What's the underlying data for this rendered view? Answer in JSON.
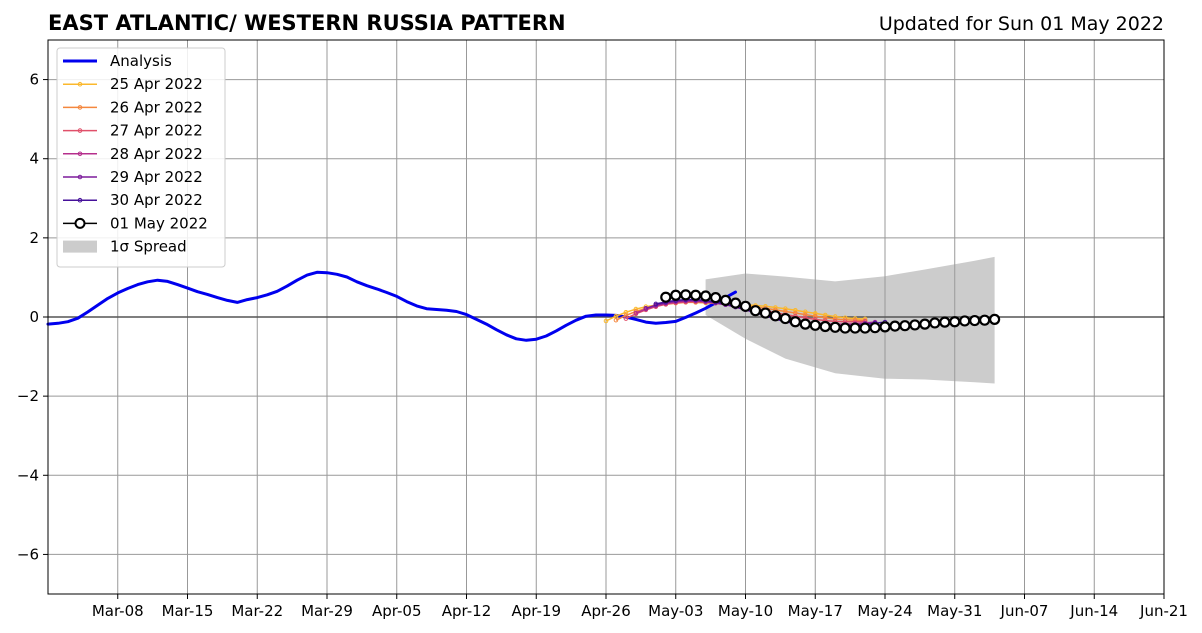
{
  "chart_data": {
    "type": "line",
    "title": "EAST ATLANTIC/ WESTERN RUSSIA PATTERN",
    "subtitle": "Updated for Sun 01 May 2022",
    "xlabel": "",
    "ylabel": "",
    "x_range": [
      "2022-03-01",
      "2022-06-21"
    ],
    "ylim": [
      -7,
      7
    ],
    "yticks": [
      -6,
      -4,
      -2,
      0,
      2,
      4,
      6
    ],
    "ytick_labels": [
      "−6",
      "−4",
      "−2",
      "0",
      "2",
      "4",
      "6"
    ],
    "xticks": [
      "2022-03-08",
      "2022-03-15",
      "2022-03-22",
      "2022-03-29",
      "2022-04-05",
      "2022-04-12",
      "2022-04-19",
      "2022-04-26",
      "2022-05-03",
      "2022-05-10",
      "2022-05-17",
      "2022-05-24",
      "2022-05-31",
      "2022-06-07",
      "2022-06-14",
      "2022-06-21"
    ],
    "xtick_labels": [
      "Mar-08",
      "Mar-15",
      "Mar-22",
      "Mar-29",
      "Apr-05",
      "Apr-12",
      "Apr-19",
      "Apr-26",
      "May-03",
      "May-10",
      "May-17",
      "May-24",
      "May-31",
      "Jun-07",
      "Jun-14",
      "Jun-21"
    ],
    "grid": true,
    "legend_position": "top-left",
    "legend": [
      {
        "label": "Analysis",
        "kind": "analysis"
      },
      {
        "label": "25 Apr 2022",
        "kind": "forecast",
        "color": "#fbb82c"
      },
      {
        "label": "26 Apr 2022",
        "kind": "forecast",
        "color": "#f4873e"
      },
      {
        "label": "27 Apr 2022",
        "kind": "forecast",
        "color": "#e0506a"
      },
      {
        "label": "28 Apr 2022",
        "kind": "forecast",
        "color": "#b52f8c"
      },
      {
        "label": "29 Apr 2022",
        "kind": "forecast",
        "color": "#7d1c9c"
      },
      {
        "label": "30 Apr 2022",
        "kind": "forecast",
        "color": "#45109a"
      },
      {
        "label": "01 May 2022",
        "kind": "latest"
      },
      {
        "label": "1σ Spread",
        "kind": "spread"
      }
    ],
    "colors": {
      "analysis": "#0000ee",
      "latest": "#000000",
      "spread": "#cccccc",
      "grid": "#999999",
      "zero": "#555555"
    },
    "analysis": {
      "name": "Analysis",
      "start": "2022-03-01",
      "values": [
        -0.18,
        -0.16,
        -0.12,
        -0.03,
        0.13,
        0.3,
        0.47,
        0.61,
        0.72,
        0.82,
        0.89,
        0.93,
        0.9,
        0.82,
        0.73,
        0.64,
        0.57,
        0.49,
        0.42,
        0.37,
        0.44,
        0.49,
        0.56,
        0.65,
        0.78,
        0.93,
        1.06,
        1.13,
        1.12,
        1.08,
        1.01,
        0.89,
        0.79,
        0.71,
        0.62,
        0.52,
        0.39,
        0.28,
        0.21,
        0.19,
        0.17,
        0.14,
        0.06,
        -0.06,
        -0.18,
        -0.32,
        -0.45,
        -0.55,
        -0.59,
        -0.56,
        -0.48,
        -0.35,
        -0.21,
        -0.08,
        0.02,
        0.05,
        0.05,
        0.04,
        0.0,
        -0.06,
        -0.13,
        -0.16,
        -0.14,
        -0.11,
        -0.01,
        0.1,
        0.22,
        0.36,
        0.49,
        0.63
      ]
    },
    "spread_band": {
      "name": "1σ Spread",
      "dates": [
        "2022-05-06",
        "2022-05-10",
        "2022-05-14",
        "2022-05-19",
        "2022-05-24",
        "2022-05-28",
        "2022-06-02",
        "2022-06-04"
      ],
      "upper": [
        0.95,
        1.1,
        1.02,
        0.9,
        1.03,
        1.2,
        1.42,
        1.52
      ],
      "lower": [
        0.05,
        -0.55,
        -1.05,
        -1.42,
        -1.56,
        -1.58,
        -1.65,
        -1.68
      ]
    },
    "series": [
      {
        "name": "25 Apr 2022",
        "start": "2022-04-26",
        "values": [
          -0.1,
          0.02,
          0.12,
          0.2,
          0.26,
          0.3,
          0.34,
          0.37,
          0.38,
          0.37,
          0.36,
          0.35,
          0.34,
          0.33,
          0.31,
          0.29,
          0.27,
          0.24,
          0.21,
          0.17,
          0.13,
          0.09,
          0.05,
          0.01,
          -0.02,
          -0.04,
          -0.05
        ]
      },
      {
        "name": "26 Apr 2022",
        "start": "2022-04-27",
        "values": [
          -0.08,
          0.04,
          0.14,
          0.22,
          0.28,
          0.32,
          0.35,
          0.37,
          0.37,
          0.36,
          0.35,
          0.33,
          0.31,
          0.28,
          0.25,
          0.22,
          0.18,
          0.14,
          0.1,
          0.06,
          0.02,
          -0.02,
          -0.05,
          -0.07,
          -0.08,
          -0.09
        ]
      },
      {
        "name": "27 Apr 2022",
        "start": "2022-04-28",
        "values": [
          -0.04,
          0.08,
          0.18,
          0.26,
          0.32,
          0.36,
          0.38,
          0.39,
          0.38,
          0.36,
          0.33,
          0.29,
          0.25,
          0.21,
          0.16,
          0.11,
          0.06,
          0.02,
          -0.02,
          -0.06,
          -0.09,
          -0.11,
          -0.12,
          -0.12,
          -0.11
        ]
      },
      {
        "name": "28 Apr 2022",
        "start": "2022-04-29",
        "values": [
          0.1,
          0.2,
          0.28,
          0.34,
          0.38,
          0.4,
          0.4,
          0.38,
          0.35,
          0.31,
          0.26,
          0.2,
          0.14,
          0.08,
          0.02,
          -0.03,
          -0.08,
          -0.12,
          -0.15,
          -0.17,
          -0.18,
          -0.18,
          -0.17,
          -0.15,
          -0.13
        ]
      },
      {
        "name": "29 Apr 2022",
        "start": "2022-04-30",
        "values": [
          0.22,
          0.3,
          0.36,
          0.4,
          0.42,
          0.42,
          0.4,
          0.36,
          0.31,
          0.25,
          0.18,
          0.11,
          0.04,
          -0.02,
          -0.08,
          -0.13,
          -0.17,
          -0.2,
          -0.22,
          -0.22,
          -0.21,
          -0.19,
          -0.17,
          -0.14
        ]
      },
      {
        "name": "30 Apr 2022",
        "start": "2022-05-01",
        "values": [
          0.33,
          0.38,
          0.42,
          0.44,
          0.44,
          0.42,
          0.38,
          0.33,
          0.26,
          0.19,
          0.11,
          0.03,
          -0.05,
          -0.12,
          -0.17,
          -0.21,
          -0.24,
          -0.25,
          -0.25,
          -0.24,
          -0.22,
          -0.19,
          -0.16,
          -0.13
        ]
      },
      {
        "name": "01 May 2022",
        "start": "2022-05-02",
        "values": [
          0.5,
          0.55,
          0.56,
          0.55,
          0.53,
          0.49,
          0.42,
          0.35,
          0.27,
          0.16,
          0.1,
          0.03,
          -0.04,
          -0.12,
          -0.18,
          -0.21,
          -0.24,
          -0.26,
          -0.28,
          -0.28,
          -0.28,
          -0.27,
          -0.25,
          -0.23,
          -0.22,
          -0.2,
          -0.18,
          -0.15,
          -0.13,
          -0.12,
          -0.1,
          -0.09,
          -0.08,
          -0.06
        ]
      }
    ]
  }
}
